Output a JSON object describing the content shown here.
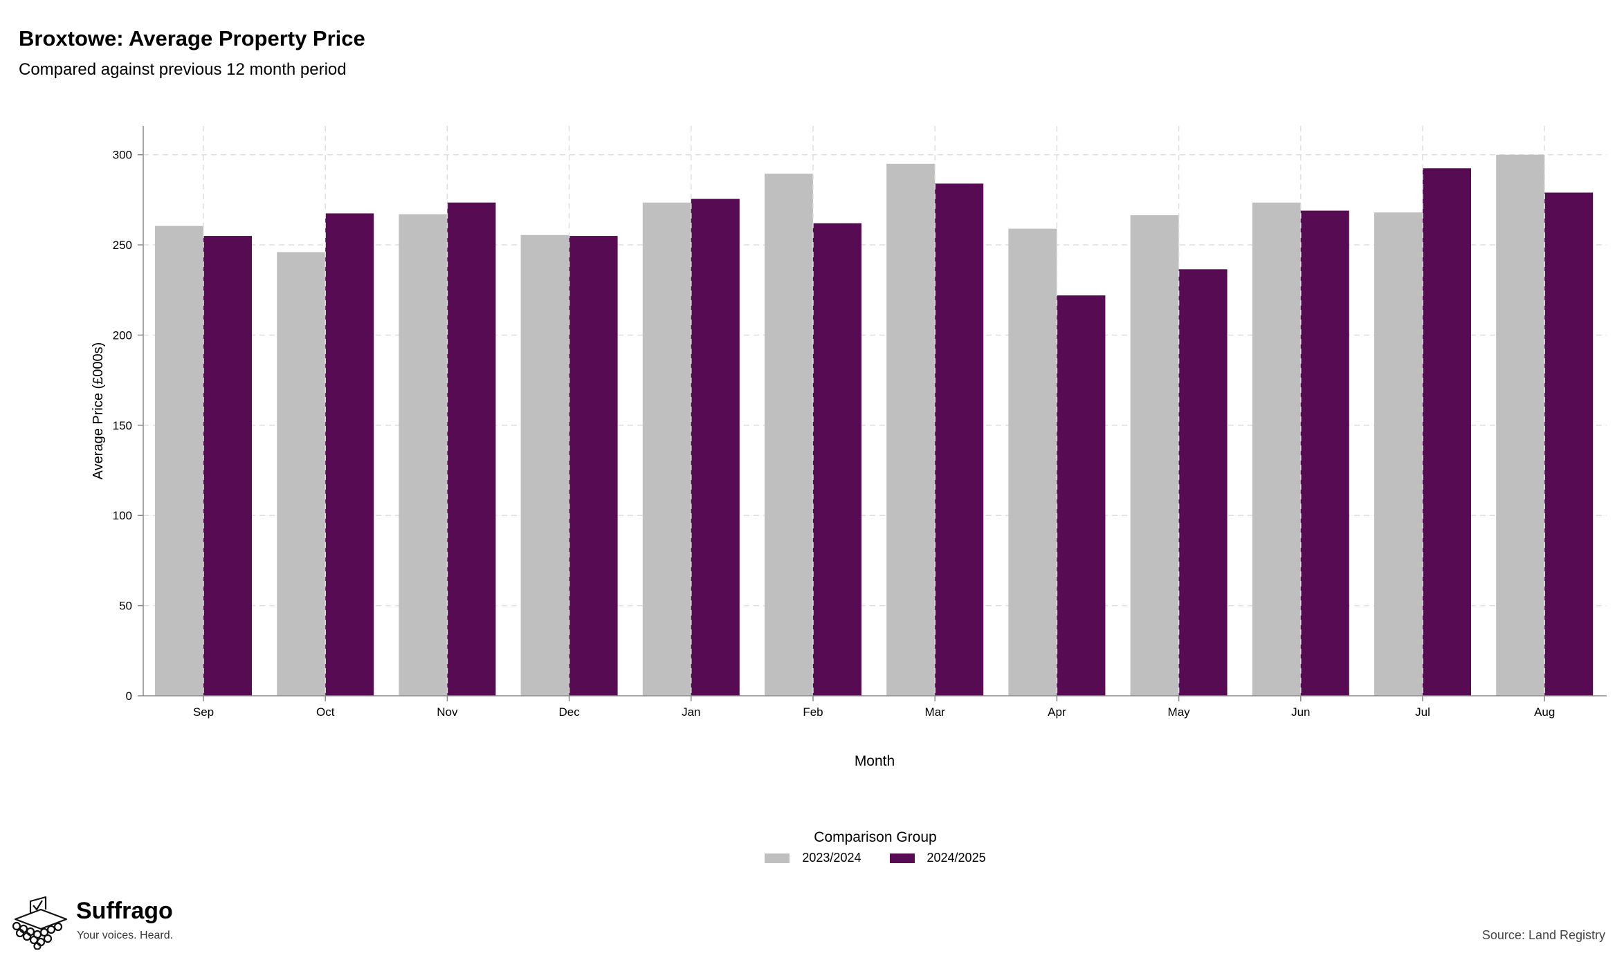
{
  "header": {
    "title": "Broxtowe: Average Property Price",
    "subtitle": "Compared against previous 12 month period"
  },
  "legend": {
    "title": "Comparison Group",
    "items": [
      {
        "label": "2023/2024",
        "color": "#bfbfbf"
      },
      {
        "label": "2024/2025",
        "color": "#560b52"
      }
    ]
  },
  "footer": {
    "brand_name": "Suffrago",
    "brand_tagline": "Your voices. Heard.",
    "source": "Source: Land Registry"
  },
  "chart_data": {
    "type": "bar",
    "xlabel": "Month",
    "ylabel": "Average Price (£000s)",
    "ylim": [
      0,
      316
    ],
    "yticks": [
      0,
      50,
      100,
      150,
      200,
      250,
      300
    ],
    "grid": true,
    "legend_position": "bottom",
    "categories": [
      "Sep",
      "Oct",
      "Nov",
      "Dec",
      "Jan",
      "Feb",
      "Mar",
      "Apr",
      "May",
      "Jun",
      "Jul",
      "Aug"
    ],
    "series": [
      {
        "name": "2023/2024",
        "color": "#bfbfbf",
        "values": [
          260.5,
          246,
          267,
          255.5,
          273.5,
          289.5,
          295,
          259,
          266.5,
          273.5,
          268,
          300
        ]
      },
      {
        "name": "2024/2025",
        "color": "#560b52",
        "values": [
          255,
          267.5,
          273.5,
          255,
          275.5,
          262,
          284,
          222,
          236.5,
          269,
          292.5,
          279
        ]
      }
    ]
  }
}
